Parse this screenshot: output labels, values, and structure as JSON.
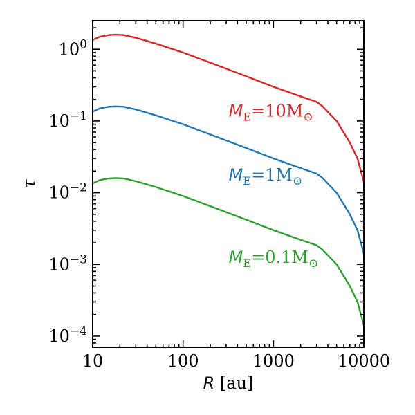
{
  "chart_data": {
    "type": "line",
    "xscale": "log",
    "yscale": "log",
    "xlim": [
      10,
      10000
    ],
    "ylim": [
      7e-05,
      2.5
    ],
    "xticks": [
      10,
      100,
      1000,
      10000
    ],
    "xtick_labels": [
      "10",
      "100",
      "1000",
      "10000"
    ],
    "yticks": [
      0.0001,
      0.001,
      0.01,
      0.1,
      1
    ],
    "ytick_labels": [
      {
        "base": "10",
        "exp": "−4"
      },
      {
        "base": "10",
        "exp": "−3"
      },
      {
        "base": "10",
        "exp": "−2"
      },
      {
        "base": "10",
        "exp": "−1"
      },
      {
        "base": "10",
        "exp": "0"
      }
    ],
    "xlabel": {
      "var": "R",
      "unit": " [au]"
    },
    "ylabel": "τ",
    "grid": false,
    "series": [
      {
        "name": "M_E=10M_⊙",
        "label": {
          "var": "M",
          "sub": "E",
          "rest": "=10M",
          "sym": "⊙"
        },
        "color": "#d62728",
        "x": [
          10,
          12,
          15,
          18,
          22,
          30,
          50,
          100,
          200,
          500,
          1000,
          2000,
          3000,
          3500,
          5000,
          7000,
          8500,
          9500,
          9900,
          10000
        ],
        "y": [
          1.35,
          1.5,
          1.58,
          1.6,
          1.58,
          1.45,
          1.2,
          0.9,
          0.65,
          0.42,
          0.3,
          0.22,
          0.185,
          0.16,
          0.1,
          0.05,
          0.03,
          0.018,
          0.015,
          0.014
        ]
      },
      {
        "name": "M_E=1M_⊙",
        "label": {
          "var": "M",
          "sub": "E",
          "rest": "=1M",
          "sym": "⊙"
        },
        "color": "#1f77b4",
        "x": [
          10,
          12,
          15,
          18,
          22,
          30,
          50,
          100,
          200,
          500,
          1000,
          2000,
          3000,
          3500,
          5000,
          7000,
          8500,
          9500,
          9900,
          10000
        ],
        "y": [
          0.135,
          0.15,
          0.158,
          0.16,
          0.158,
          0.145,
          0.12,
          0.09,
          0.065,
          0.042,
          0.03,
          0.022,
          0.0185,
          0.016,
          0.01,
          0.005,
          0.003,
          0.0018,
          0.0015,
          0.0014
        ]
      },
      {
        "name": "M_E=0.1M_⊙",
        "label": {
          "var": "M",
          "sub": "E",
          "rest": "=0.1M",
          "sym": "⊙"
        },
        "color": "#2ca02c",
        "x": [
          10,
          12,
          15,
          18,
          22,
          30,
          50,
          100,
          200,
          500,
          1000,
          2000,
          3000,
          3500,
          5000,
          7000,
          8500,
          9500,
          9900,
          10000
        ],
        "y": [
          0.0135,
          0.015,
          0.0158,
          0.016,
          0.0158,
          0.0145,
          0.012,
          0.009,
          0.0065,
          0.0042,
          0.003,
          0.0022,
          0.00185,
          0.0016,
          0.001,
          0.0005,
          0.0003,
          0.00018,
          0.00015,
          0.00014
        ]
      }
    ],
    "annotations": [
      {
        "series": 0,
        "x": 320,
        "y": 0.115
      },
      {
        "series": 1,
        "x": 320,
        "y": 0.0148
      },
      {
        "series": 2,
        "x": 320,
        "y": 0.00105
      }
    ]
  }
}
